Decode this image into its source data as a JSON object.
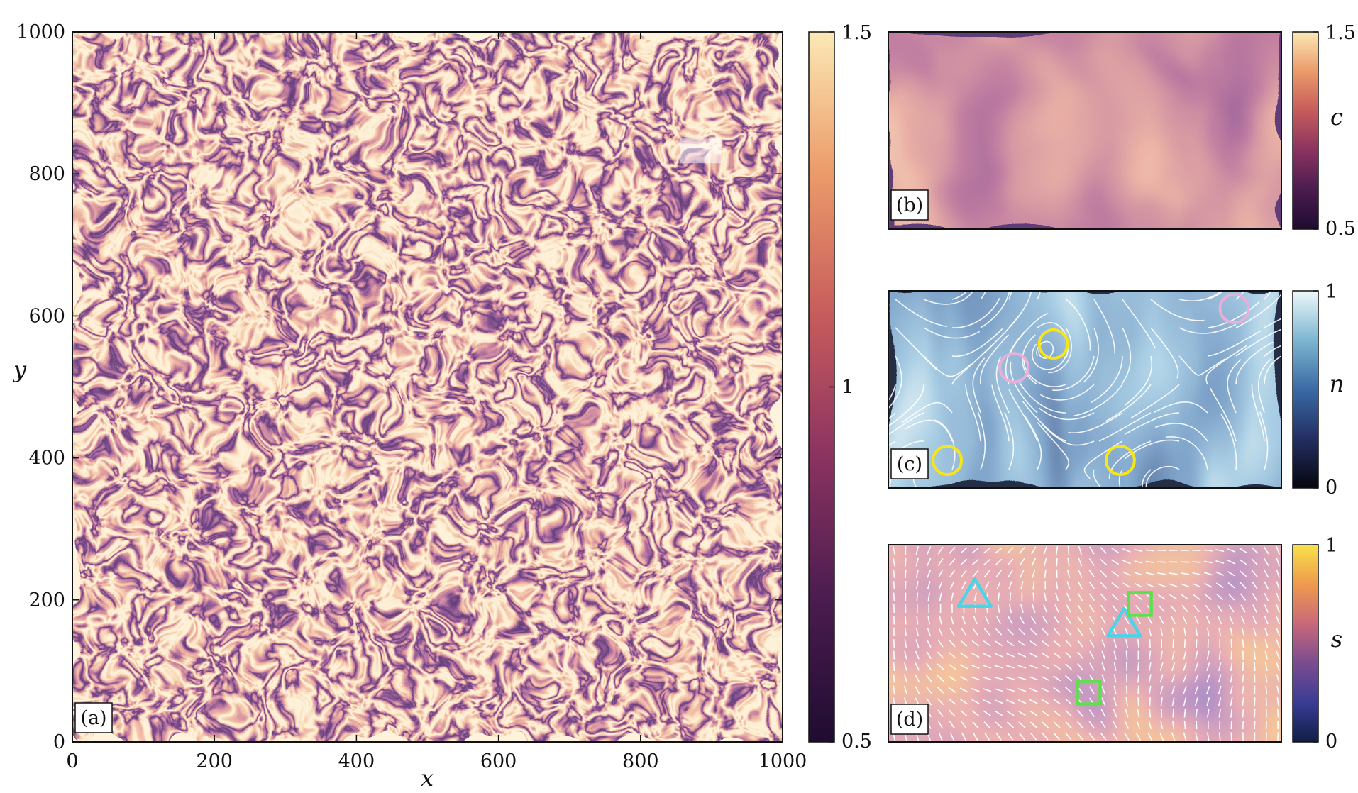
{
  "chart_data": [
    {
      "panel": "a",
      "type": "heatmap",
      "panel_label": "(a)",
      "xlabel": "x",
      "ylabel": "y",
      "xlim": [
        0,
        1000
      ],
      "ylim": [
        0,
        1000
      ],
      "xticks": [
        "0",
        "200",
        "400",
        "600",
        "800",
        "1000"
      ],
      "yticks": [
        "0",
        "200",
        "400",
        "600",
        "800",
        "1000"
      ],
      "colorbar": {
        "ticks": [
          "0.5",
          "1",
          "1.5"
        ],
        "range": [
          0.5,
          1.5
        ],
        "label": ""
      },
      "colormap": [
        "#1f0c30",
        "#5a1f55",
        "#9a3a5c",
        "#d2675a",
        "#eea36c",
        "#fbe2a8"
      ],
      "highlight_region": {
        "x": [
          855,
          915
        ],
        "y": [
          815,
          850
        ]
      }
    },
    {
      "panel": "b",
      "type": "heatmap",
      "panel_label": "(b)",
      "colorbar": {
        "ticks": [
          "0.5",
          "1.5"
        ],
        "range": [
          0.5,
          1.5
        ],
        "label": "c"
      }
    },
    {
      "panel": "c",
      "type": "heatmap",
      "panel_label": "(c)",
      "colorbar": {
        "ticks": [
          "0",
          "1"
        ],
        "range": [
          0,
          1
        ],
        "label": "n"
      },
      "colormap": [
        "#06080f",
        "#1d2a55",
        "#34609a",
        "#69a6c8",
        "#c7e4ee",
        "#f5fbfd"
      ],
      "defects_plus_half": [
        [
          0.15,
          0.14
        ],
        [
          0.42,
          0.73
        ],
        [
          0.59,
          0.14
        ]
      ],
      "defects_minus_half": [
        [
          0.32,
          0.61
        ],
        [
          0.88,
          0.91
        ]
      ]
    },
    {
      "panel": "d",
      "type": "heatmap",
      "panel_label": "(d)",
      "colorbar": {
        "ticks": [
          "0",
          "1"
        ],
        "range": [
          0,
          1
        ],
        "label": "s"
      },
      "colormap": [
        "#0f1e45",
        "#3a3c95",
        "#7a4c8f",
        "#c9687a",
        "#ee9a4d",
        "#f8de4a"
      ],
      "triangles": [
        [
          0.22,
          0.74
        ],
        [
          0.6,
          0.59
        ]
      ],
      "squares": [
        [
          0.64,
          0.7
        ],
        [
          0.51,
          0.25
        ]
      ]
    }
  ]
}
